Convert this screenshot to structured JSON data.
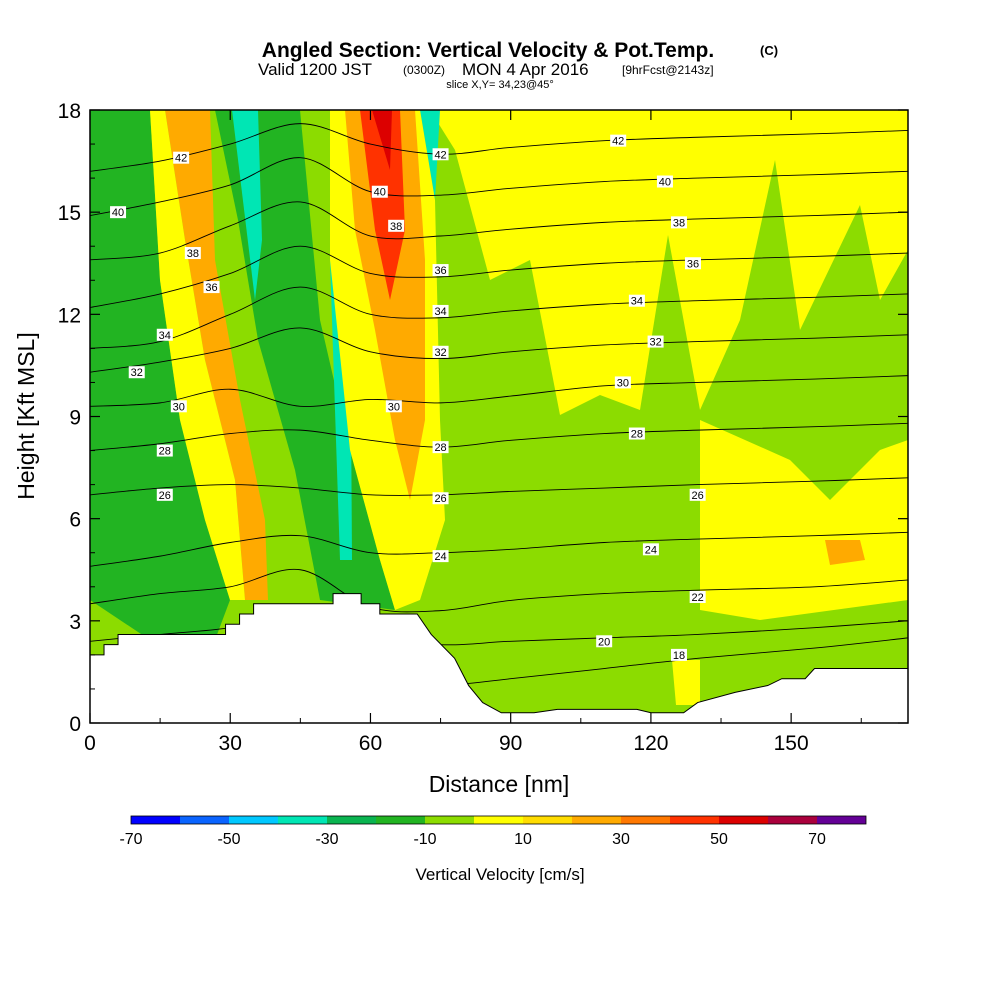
{
  "header": {
    "title_main": "Angled Section: Vertical Velocity & Pot.Temp.",
    "title_unit": "(C)",
    "valid_a": "Valid 1200 JST",
    "valid_b": "(0300Z)",
    "valid_c": "MON 4 Apr 2016",
    "valid_d": "[9hrFcst@2143z]",
    "slice": "slice X,Y= 34,23@45°"
  },
  "chart_data": {
    "type": "heatmap",
    "xlabel": "Distance [nm]",
    "ylabel": "Height [Kft MSL]",
    "xlim": [
      0,
      175
    ],
    "ylim": [
      0,
      18
    ],
    "x_ticks": [
      "0",
      "30",
      "60",
      "90",
      "120",
      "150"
    ],
    "y_ticks": [
      "0",
      "3",
      "6",
      "9",
      "12",
      "15",
      "18"
    ],
    "colorbar": {
      "label": "Vertical Velocity [cm/s]",
      "tick_labels": [
        "-70",
        "-50",
        "-30",
        "-10",
        "10",
        "30",
        "50",
        "70"
      ],
      "colors": [
        "#0000ff",
        "#0a64ff",
        "#00c8ff",
        "#00e6b4",
        "#0ab450",
        "#22b422",
        "#8cdc00",
        "#ffff00",
        "#ffdc00",
        "#ffaa00",
        "#ff7800",
        "#ff3200",
        "#dc0000",
        "#aa003c",
        "#640096"
      ]
    },
    "terrain": [
      [
        0,
        2
      ],
      [
        3,
        2
      ],
      [
        3,
        2.3
      ],
      [
        6,
        2.3
      ],
      [
        6,
        2.6
      ],
      [
        27,
        2.6
      ],
      [
        29,
        2.6
      ],
      [
        29,
        2.9
      ],
      [
        32,
        2.9
      ],
      [
        32,
        3.2
      ],
      [
        35,
        3.2
      ],
      [
        35,
        3.5
      ],
      [
        52,
        3.5
      ],
      [
        52,
        3.8
      ],
      [
        58,
        3.8
      ],
      [
        58,
        3.5
      ],
      [
        62,
        3.5
      ],
      [
        62,
        3.2
      ],
      [
        70,
        3.2
      ],
      [
        73,
        2.6
      ],
      [
        78,
        1.9
      ],
      [
        81,
        1.1
      ],
      [
        84,
        0.6
      ],
      [
        88,
        0.3
      ],
      [
        90,
        0.3
      ],
      [
        95,
        0.3
      ],
      [
        100,
        0.4
      ],
      [
        110,
        0.4
      ],
      [
        117,
        0.4
      ],
      [
        120,
        0.3
      ],
      [
        127,
        0.3
      ],
      [
        130,
        0.6
      ],
      [
        138,
        0.9
      ],
      [
        145,
        1.1
      ],
      [
        148,
        1.3
      ],
      [
        153,
        1.3
      ],
      [
        155,
        1.6
      ],
      [
        175,
        1.6
      ]
    ],
    "contours": [
      {
        "label": "42",
        "y": [
          16.2,
          16.5,
          17.0,
          17.6,
          17.0,
          16.7,
          16.9,
          17.1,
          17.2,
          17.3,
          17.4
        ]
      },
      {
        "label": "40",
        "y": [
          14.9,
          15.3,
          15.8,
          16.6,
          15.6,
          15.5,
          15.7,
          15.9,
          16.0,
          16.1,
          16.2
        ]
      },
      {
        "label": "38",
        "y": [
          13.6,
          13.8,
          14.6,
          15.3,
          14.3,
          14.3,
          14.5,
          14.7,
          14.8,
          14.9,
          15.0
        ]
      },
      {
        "label": "36",
        "y": [
          12.2,
          12.6,
          13.2,
          14.0,
          13.2,
          13.1,
          13.3,
          13.5,
          13.6,
          13.7,
          13.8
        ]
      },
      {
        "label": "34",
        "y": [
          11.0,
          11.2,
          12.0,
          12.8,
          12.0,
          11.9,
          12.1,
          12.3,
          12.4,
          12.5,
          12.6
        ]
      },
      {
        "label": "32",
        "y": [
          10.3,
          10.6,
          11.0,
          11.6,
          10.9,
          10.7,
          10.9,
          11.1,
          11.2,
          11.3,
          11.4
        ]
      },
      {
        "label": "30",
        "y": [
          9.3,
          9.4,
          9.8,
          9.3,
          9.5,
          9.4,
          9.6,
          9.9,
          10.0,
          10.1,
          10.2
        ]
      },
      {
        "label": "28",
        "y": [
          8.0,
          8.2,
          8.5,
          8.6,
          8.3,
          8.1,
          8.3,
          8.5,
          8.6,
          8.7,
          8.8
        ]
      },
      {
        "label": "26",
        "y": [
          6.7,
          6.9,
          7.0,
          6.9,
          6.7,
          6.7,
          6.8,
          6.9,
          7.0,
          7.1,
          7.2
        ]
      },
      {
        "label": "24",
        "y": [
          4.6,
          4.9,
          5.3,
          5.5,
          5.0,
          5.0,
          5.1,
          5.3,
          5.4,
          5.5,
          5.6
        ]
      },
      {
        "label": "22",
        "y": [
          3.5,
          3.8,
          4.0,
          4.5,
          3.4,
          3.3,
          3.6,
          3.8,
          3.9,
          4.0,
          4.2
        ]
      },
      {
        "label": "20",
        "y": [
          2.4,
          2.6,
          2.8,
          3.2,
          2.6,
          2.3,
          2.4,
          2.5,
          2.6,
          2.8,
          3.0
        ]
      },
      {
        "label": "18",
        "y": [
          0.4,
          0.8,
          1.2,
          2.0,
          1.2,
          1.1,
          1.3,
          1.6,
          1.9,
          2.2,
          2.5
        ]
      }
    ],
    "contour_x": [
      0,
      15,
      30,
      45,
      60,
      75,
      90,
      110,
      130,
      155,
      175
    ],
    "contour_label_positions": [
      {
        "label": "42",
        "x": 19.5,
        "y": 16.6
      },
      {
        "label": "42",
        "x": 75,
        "y": 16.7
      },
      {
        "label": "42",
        "x": 113,
        "y": 17.1
      },
      {
        "label": "40",
        "x": 6,
        "y": 15.0
      },
      {
        "label": "40",
        "x": 62,
        "y": 15.6
      },
      {
        "label": "40",
        "x": 123,
        "y": 15.9
      },
      {
        "label": "38",
        "x": 22,
        "y": 13.8
      },
      {
        "label": "38",
        "x": 65.5,
        "y": 14.6
      },
      {
        "label": "38",
        "x": 126,
        "y": 14.7
      },
      {
        "label": "36",
        "x": 26,
        "y": 12.8
      },
      {
        "label": "36",
        "x": 75,
        "y": 13.3
      },
      {
        "label": "36",
        "x": 129,
        "y": 13.5
      },
      {
        "label": "34",
        "x": 16,
        "y": 11.4
      },
      {
        "label": "34",
        "x": 75,
        "y": 12.1
      },
      {
        "label": "34",
        "x": 117,
        "y": 12.4
      },
      {
        "label": "32",
        "x": 10,
        "y": 10.3
      },
      {
        "label": "32",
        "x": 75,
        "y": 10.9
      },
      {
        "label": "32",
        "x": 121,
        "y": 11.2
      },
      {
        "label": "30",
        "x": 19,
        "y": 9.3
      },
      {
        "label": "30",
        "x": 65,
        "y": 9.3
      },
      {
        "label": "30",
        "x": 114,
        "y": 10.0
      },
      {
        "label": "28",
        "x": 16,
        "y": 8.0
      },
      {
        "label": "28",
        "x": 75,
        "y": 8.1
      },
      {
        "label": "28",
        "x": 117,
        "y": 8.5
      },
      {
        "label": "26",
        "x": 16,
        "y": 6.7
      },
      {
        "label": "26",
        "x": 75,
        "y": 6.6
      },
      {
        "label": "26",
        "x": 130,
        "y": 6.7
      },
      {
        "label": "24",
        "x": 75,
        "y": 4.9
      },
      {
        "label": "24",
        "x": 120,
        "y": 5.1
      },
      {
        "label": "22",
        "x": 130,
        "y": 3.7
      },
      {
        "label": "20",
        "x": 110,
        "y": 2.4
      },
      {
        "label": "18",
        "x": 126,
        "y": 2.0
      }
    ]
  }
}
